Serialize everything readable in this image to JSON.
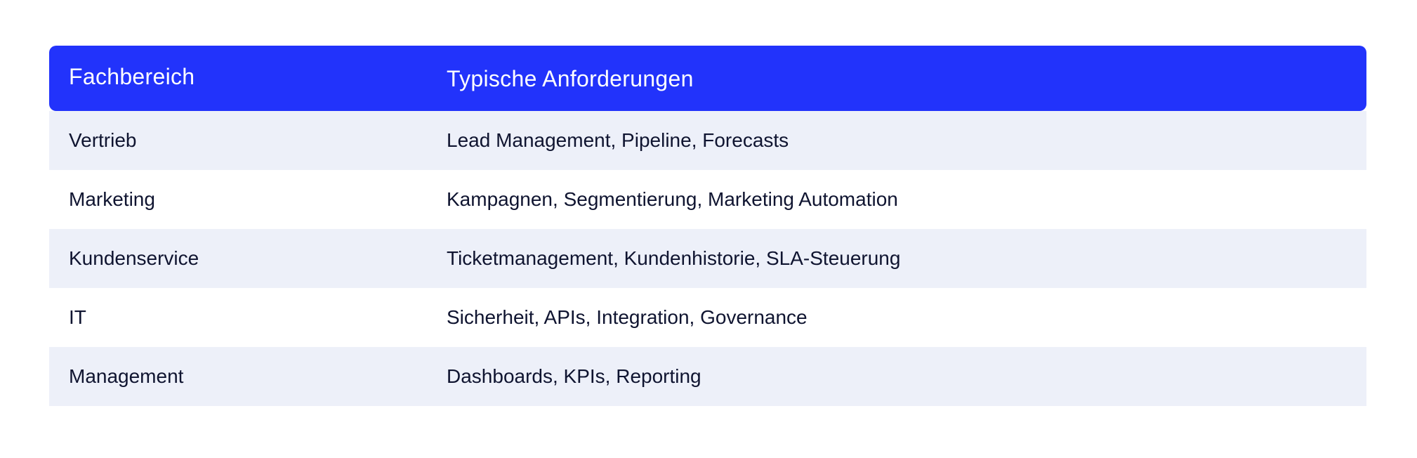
{
  "table": {
    "headers": [
      "Fachbereich",
      "Typische Anforderungen"
    ],
    "rows": [
      [
        "Vertrieb",
        "Lead Management, Pipeline, Forecasts"
      ],
      [
        "Marketing",
        "Kampagnen, Segmentierung, Marketing Automation"
      ],
      [
        "Kundenservice",
        "Ticketmanagement, Kundenhistorie, SLA-Steuerung"
      ],
      [
        "IT",
        "Sicherheit, APIs, Integration, Governance"
      ],
      [
        "Management",
        "Dashboards, KPIs, Reporting"
      ]
    ]
  },
  "colors": {
    "header_background": "#2233fb",
    "header_text": "#ffffff",
    "row_shaded": "#edf0f9",
    "row_plain": "#ffffff",
    "body_text": "#0f1430"
  }
}
